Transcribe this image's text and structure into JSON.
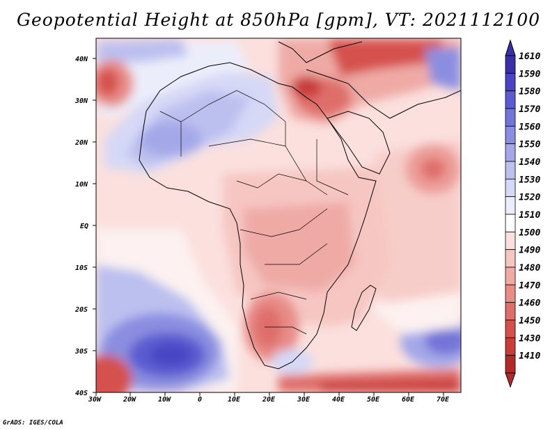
{
  "title": "Geopotential Height at 850hPa [gpm], VT: 2021112100",
  "credit": "GrADS: IGES/COLA",
  "map": {
    "lon_ticks": [
      "30W",
      "20W",
      "10W",
      "0",
      "10E",
      "20E",
      "30E",
      "40E",
      "50E",
      "60E",
      "70E"
    ],
    "lat_ticks": [
      "40N",
      "30N",
      "20N",
      "10N",
      "EQ",
      "10S",
      "20S",
      "30S",
      "40S"
    ]
  },
  "colorbar": {
    "labels": [
      "1610",
      "1590",
      "1580",
      "1570",
      "1560",
      "1550",
      "1540",
      "1530",
      "1520",
      "1510",
      "1500",
      "1490",
      "1480",
      "1470",
      "1460",
      "1450",
      "1430",
      "1410"
    ],
    "colors": [
      "#3a2fa6",
      "#4a44c4",
      "#5c5bd0",
      "#7374d8",
      "#8b8ee0",
      "#a4a8e8",
      "#bcc0ef",
      "#d5d8f6",
      "#ecedfb",
      "#ffffff",
      "#fbe0de",
      "#f6c6c2",
      "#efaaa6",
      "#e88c88",
      "#df6e6a",
      "#d5514d",
      "#c83c3a",
      "#b22b2c"
    ]
  }
}
